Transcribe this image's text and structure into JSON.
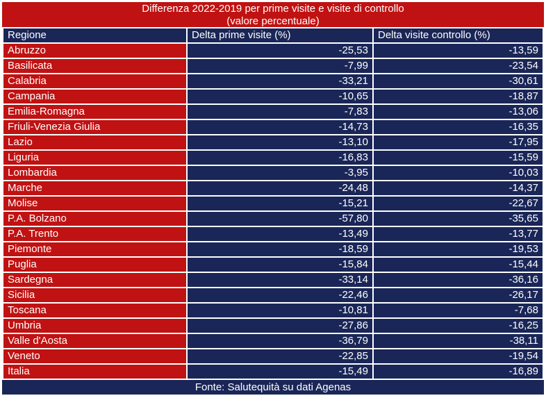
{
  "title": {
    "line1": "Differenza 2022-2019 per prime visite e visite di controllo",
    "line2": "(valore percentuale)"
  },
  "table": {
    "headers": [
      "Regione",
      "Delta prime visite (%)",
      "Delta visite controllo (%)"
    ],
    "rows": [
      {
        "regione": "Abruzzo",
        "prime": "-25,53",
        "controllo": "-13,59"
      },
      {
        "regione": "Basilicata",
        "prime": "-7,99",
        "controllo": "-23,54"
      },
      {
        "regione": "Calabria",
        "prime": "-33,21",
        "controllo": "-30,61"
      },
      {
        "regione": "Campania",
        "prime": "-10,65",
        "controllo": "-18,87"
      },
      {
        "regione": "Emilia-Romagna",
        "prime": "-7,83",
        "controllo": "-13,06"
      },
      {
        "regione": "Friuli-Venezia Giulia",
        "prime": "-14,73",
        "controllo": "-16,35"
      },
      {
        "regione": "Lazio",
        "prime": "-13,10",
        "controllo": "-17,95"
      },
      {
        "regione": "Liguria",
        "prime": "-16,83",
        "controllo": "-15,59"
      },
      {
        "regione": "Lombardia",
        "prime": "-3,95",
        "controllo": "-10,03"
      },
      {
        "regione": "Marche",
        "prime": "-24,48",
        "controllo": "-14,37"
      },
      {
        "regione": "Molise",
        "prime": "-15,21",
        "controllo": "-22,67"
      },
      {
        "regione": "P.A. Bolzano",
        "prime": "-57,80",
        "controllo": "-35,65"
      },
      {
        "regione": "P.A. Trento",
        "prime": "-13,49",
        "controllo": "-13,77"
      },
      {
        "regione": "Piemonte",
        "prime": "-18,59",
        "controllo": "-19,53"
      },
      {
        "regione": "Puglia",
        "prime": "-15,84",
        "controllo": "-15,44"
      },
      {
        "regione": "Sardegna",
        "prime": "-33,14",
        "controllo": "-36,16"
      },
      {
        "regione": "Sicilia",
        "prime": "-22,46",
        "controllo": "-26,17"
      },
      {
        "regione": "Toscana",
        "prime": "-10,81",
        "controllo": "-7,68"
      },
      {
        "regione": "Umbria",
        "prime": "-27,86",
        "controllo": "-16,25"
      },
      {
        "regione": "Valle d'Aosta",
        "prime": "-36,79",
        "controllo": "-38,11"
      },
      {
        "regione": "Veneto",
        "prime": "-22,85",
        "controllo": "-19,54"
      },
      {
        "regione": "Italia",
        "prime": "-15,49",
        "controllo": "-16,89"
      }
    ]
  },
  "footer": {
    "text": "Fonte: Salutequità su dati Agenas"
  },
  "colors": {
    "red": "#C01212",
    "navy": "#1A2657",
    "grid": "#FFFFFF",
    "text": "#FFFFFF"
  },
  "chart_data": {
    "type": "table",
    "title": "Differenza 2022-2019 per prime visite e visite di controllo (valore percentuale)",
    "columns": [
      "Regione",
      "Delta prime visite (%)",
      "Delta visite controllo (%)"
    ],
    "categories": [
      "Abruzzo",
      "Basilicata",
      "Calabria",
      "Campania",
      "Emilia-Romagna",
      "Friuli-Venezia Giulia",
      "Lazio",
      "Liguria",
      "Lombardia",
      "Marche",
      "Molise",
      "P.A. Bolzano",
      "P.A. Trento",
      "Piemonte",
      "Puglia",
      "Sardegna",
      "Sicilia",
      "Toscana",
      "Umbria",
      "Valle d'Aosta",
      "Veneto",
      "Italia"
    ],
    "series": [
      {
        "name": "Delta prime visite (%)",
        "values": [
          -25.53,
          -7.99,
          -33.21,
          -10.65,
          -7.83,
          -14.73,
          -13.1,
          -16.83,
          -3.95,
          -24.48,
          -15.21,
          -57.8,
          -13.49,
          -18.59,
          -15.84,
          -33.14,
          -22.46,
          -10.81,
          -27.86,
          -36.79,
          -22.85,
          -15.49
        ]
      },
      {
        "name": "Delta visite controllo (%)",
        "values": [
          -13.59,
          -23.54,
          -30.61,
          -18.87,
          -13.06,
          -16.35,
          -17.95,
          -15.59,
          -10.03,
          -14.37,
          -22.67,
          -35.65,
          -13.77,
          -19.53,
          -15.44,
          -36.16,
          -26.17,
          -7.68,
          -16.25,
          -38.11,
          -19.54,
          -16.89
        ]
      }
    ],
    "source_note": "Fonte: Salutequità su dati Agenas"
  }
}
